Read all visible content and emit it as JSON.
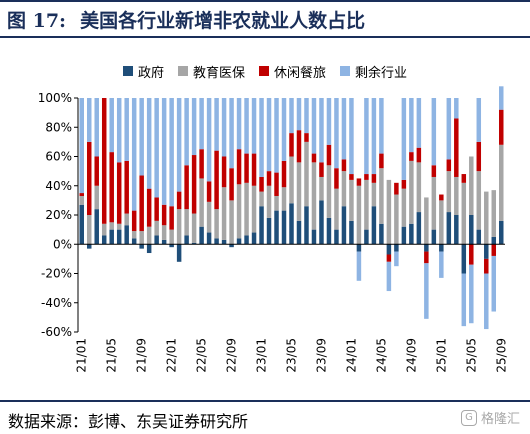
{
  "header": {
    "figure_label": "图 17:",
    "title": "美国各行业新增非农就业人数占比"
  },
  "footer": {
    "source": "数据来源：彭博、东吴证券研究所",
    "watermark": "格隆汇"
  },
  "colors": {
    "gov": "#1f4e79",
    "edu": "#a6a6a6",
    "leisure": "#c00000",
    "other": "#8eb4e3",
    "frame": "#1a2f5a"
  },
  "chart_data": {
    "type": "bar",
    "stacked": true,
    "y_format": "percent",
    "ylim": [
      -60,
      100
    ],
    "yticks": [
      -60,
      -40,
      -20,
      0,
      20,
      40,
      60,
      80,
      100
    ],
    "xtick_labels": [
      "21/01",
      "21/05",
      "21/09",
      "22/01",
      "22/05",
      "22/09",
      "23/01",
      "23/05",
      "23/09",
      "24/01",
      "24/05",
      "24/09",
      "25/01",
      "25/05",
      "25/09"
    ],
    "xtick_every": 4,
    "grid": false,
    "legend_position": "top",
    "categories": [
      "21/01",
      "21/02",
      "21/03",
      "21/04",
      "21/05",
      "21/06",
      "21/07",
      "21/08",
      "21/09",
      "21/10",
      "21/11",
      "21/12",
      "22/01",
      "22/02",
      "22/03",
      "22/04",
      "22/05",
      "22/06",
      "22/07",
      "22/08",
      "22/09",
      "22/10",
      "22/11",
      "22/12",
      "23/01",
      "23/02",
      "23/03",
      "23/04",
      "23/05",
      "23/06",
      "23/07",
      "23/08",
      "23/09",
      "23/10",
      "23/11",
      "23/12",
      "24/01",
      "24/02",
      "24/03",
      "24/04",
      "24/05",
      "24/06",
      "24/07",
      "24/08",
      "24/09",
      "24/10",
      "24/11",
      "24/12",
      "25/01",
      "25/02",
      "25/03",
      "25/04",
      "25/05",
      "25/06",
      "25/07",
      "25/08",
      "25/09"
    ],
    "series": [
      {
        "name": "政府",
        "key": "gov",
        "values": [
          27,
          -3,
          24,
          6,
          10,
          10,
          13,
          4,
          -3,
          -6,
          6,
          3,
          -2,
          -12,
          6,
          1,
          12,
          8,
          4,
          3,
          -2,
          4,
          6,
          8,
          26,
          18,
          23,
          23,
          28,
          16,
          26,
          10,
          30,
          18,
          10,
          26,
          16,
          -5,
          10,
          26,
          14,
          -7,
          -5,
          12,
          14,
          22,
          -5,
          10,
          -5,
          22,
          20,
          -20,
          20,
          10,
          -10,
          5,
          16
        ]
      },
      {
        "name": "教育医保",
        "key": "edu",
        "values": [
          6,
          20,
          16,
          8,
          5,
          4,
          8,
          5,
          9,
          12,
          10,
          10,
          10,
          24,
          18,
          20,
          33,
          21,
          20,
          36,
          30,
          37,
          36,
          32,
          10,
          22,
          10,
          16,
          32,
          40,
          44,
          46,
          16,
          36,
          28,
          24,
          28,
          40,
          34,
          16,
          38,
          44,
          34,
          26,
          43,
          34,
          32,
          36,
          30,
          28,
          26,
          42,
          40,
          40,
          36,
          32,
          52
        ]
      },
      {
        "name": "休闲餐旅",
        "key": "leisure",
        "values": [
          2,
          50,
          20,
          86,
          48,
          42,
          36,
          14,
          38,
          26,
          16,
          14,
          16,
          12,
          30,
          40,
          20,
          14,
          40,
          21,
          22,
          24,
          20,
          22,
          10,
          10,
          16,
          18,
          16,
          22,
          6,
          6,
          10,
          14,
          14,
          8,
          4,
          5,
          4,
          6,
          10,
          -5,
          8,
          6,
          6,
          10,
          -8,
          8,
          4,
          8,
          40,
          6,
          -14,
          20,
          -10,
          -8,
          24
        ]
      },
      {
        "name": "剩余行业",
        "key": "other",
        "values": [
          65,
          30,
          40,
          0,
          37,
          44,
          43,
          77,
          53,
          62,
          68,
          73,
          74,
          64,
          46,
          39,
          35,
          57,
          36,
          40,
          48,
          35,
          38,
          38,
          54,
          50,
          51,
          43,
          24,
          22,
          24,
          38,
          44,
          32,
          48,
          42,
          52,
          -20,
          52,
          52,
          38,
          -20,
          -10,
          56,
          37,
          34,
          -38,
          46,
          -18,
          42,
          14,
          -36,
          -40,
          30,
          -38,
          -38,
          16
        ]
      }
    ]
  }
}
